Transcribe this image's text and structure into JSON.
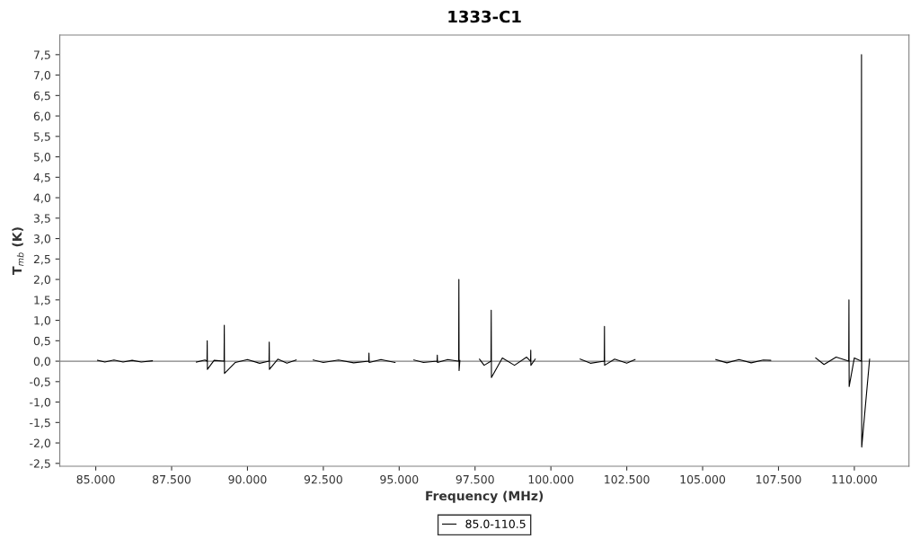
{
  "chart_data": {
    "type": "line",
    "title": "1333-C1",
    "xlabel": "Frequency (MHz)",
    "ylabel": "T$_{mb}$ (K)",
    "xlim": [
      83815,
      111800
    ],
    "ylim": [
      -2.57,
      7.98
    ],
    "xticks": [
      {
        "value": 85000,
        "label": "85.000"
      },
      {
        "value": 87500,
        "label": "87.500"
      },
      {
        "value": 90000,
        "label": "90.000"
      },
      {
        "value": 92500,
        "label": "92.500"
      },
      {
        "value": 95000,
        "label": "95.000"
      },
      {
        "value": 97500,
        "label": "97.500"
      },
      {
        "value": 100000,
        "label": "100.000"
      },
      {
        "value": 102500,
        "label": "102.500"
      },
      {
        "value": 105000,
        "label": "105.000"
      },
      {
        "value": 107500,
        "label": "107.500"
      },
      {
        "value": 110000,
        "label": "110.000"
      }
    ],
    "yticks": [
      {
        "value": -2.5,
        "label": "-2,5"
      },
      {
        "value": -2.0,
        "label": "-2,0"
      },
      {
        "value": -1.5,
        "label": "-1,5"
      },
      {
        "value": -1.0,
        "label": "-1,0"
      },
      {
        "value": -0.5,
        "label": "-0,5"
      },
      {
        "value": 0,
        "label": "0,0"
      },
      {
        "value": 0.5,
        "label": "0,5"
      },
      {
        "value": 1.0,
        "label": "1,0"
      },
      {
        "value": 1.5,
        "label": "1,5"
      },
      {
        "value": 2.0,
        "label": "2,0"
      },
      {
        "value": 2.5,
        "label": "2,5"
      },
      {
        "value": 3.0,
        "label": "3,0"
      },
      {
        "value": 3.5,
        "label": "3,5"
      },
      {
        "value": 4.0,
        "label": "4,0"
      },
      {
        "value": 4.5,
        "label": "4,5"
      },
      {
        "value": 5.0,
        "label": "5,0"
      },
      {
        "value": 5.5,
        "label": "5,5"
      },
      {
        "value": 6.0,
        "label": "6,0"
      },
      {
        "value": 6.5,
        "label": "6,5"
      },
      {
        "value": 7.0,
        "label": "7,0"
      },
      {
        "value": 7.5,
        "label": "7,5"
      }
    ],
    "grid": false,
    "legend": "bottom",
    "marker": "none",
    "line_style": "solid",
    "ref_lines": [
      {
        "axis": "y",
        "value": 0,
        "color": "#808080"
      }
    ],
    "series": [
      {
        "name": "85.0-110.5",
        "color": "#000000",
        "x": [
          85059,
          85300,
          85600,
          85900,
          86200,
          86500,
          86866,
          86900,
          88317,
          88600,
          88666,
          88673,
          88680,
          88900,
          89229,
          89236,
          89243,
          89600,
          90000,
          90400,
          90710,
          90717,
          90724,
          91000,
          91300,
          91605,
          91700,
          92168,
          92500,
          93000,
          93500,
          93997,
          94004,
          94010,
          94400,
          94863,
          94900,
          95485,
          95800,
          96249,
          96256,
          96262,
          96600,
          96960,
          96967,
          96974,
          97000,
          97100,
          97648,
          97800,
          98026,
          98033,
          98040,
          98400,
          98800,
          99200,
          99329,
          99336,
          99340,
          99484,
          99500,
          100965,
          101300,
          101758,
          101765,
          101770,
          102100,
          102500,
          102772,
          102800,
          105438,
          105800,
          106200,
          106600,
          107000,
          107245,
          107300,
          108726,
          109000,
          109400,
          109815,
          109822,
          109829,
          110000,
          110229,
          110236,
          110243,
          110503
        ],
        "values": [
          0.02,
          -0.02,
          0.03,
          -0.02,
          0.02,
          -0.02,
          0.01,
          null,
          -0.02,
          0.03,
          0.0,
          0.5,
          -0.2,
          0.02,
          0.0,
          0.88,
          -0.3,
          -0.03,
          0.04,
          -0.05,
          0.0,
          0.47,
          -0.2,
          0.05,
          -0.05,
          0.03,
          null,
          0.03,
          -0.03,
          0.03,
          -0.04,
          0.0,
          0.2,
          -0.03,
          0.04,
          -0.03,
          null,
          0.03,
          -0.03,
          0.0,
          0.15,
          -0.03,
          0.04,
          0.0,
          2.0,
          -0.23,
          0.02,
          null,
          0.05,
          -0.1,
          0.0,
          1.25,
          -0.4,
          0.08,
          -0.1,
          0.1,
          0.0,
          0.27,
          -0.1,
          0.05,
          null,
          0.05,
          -0.05,
          0.0,
          0.85,
          -0.1,
          0.05,
          -0.05,
          0.04,
          null,
          0.04,
          -0.04,
          0.04,
          -0.04,
          0.03,
          0.02,
          null,
          0.08,
          -0.08,
          0.1,
          0.0,
          1.5,
          -0.62,
          0.08,
          0.0,
          7.5,
          -2.1,
          0.05
        ]
      }
    ]
  }
}
